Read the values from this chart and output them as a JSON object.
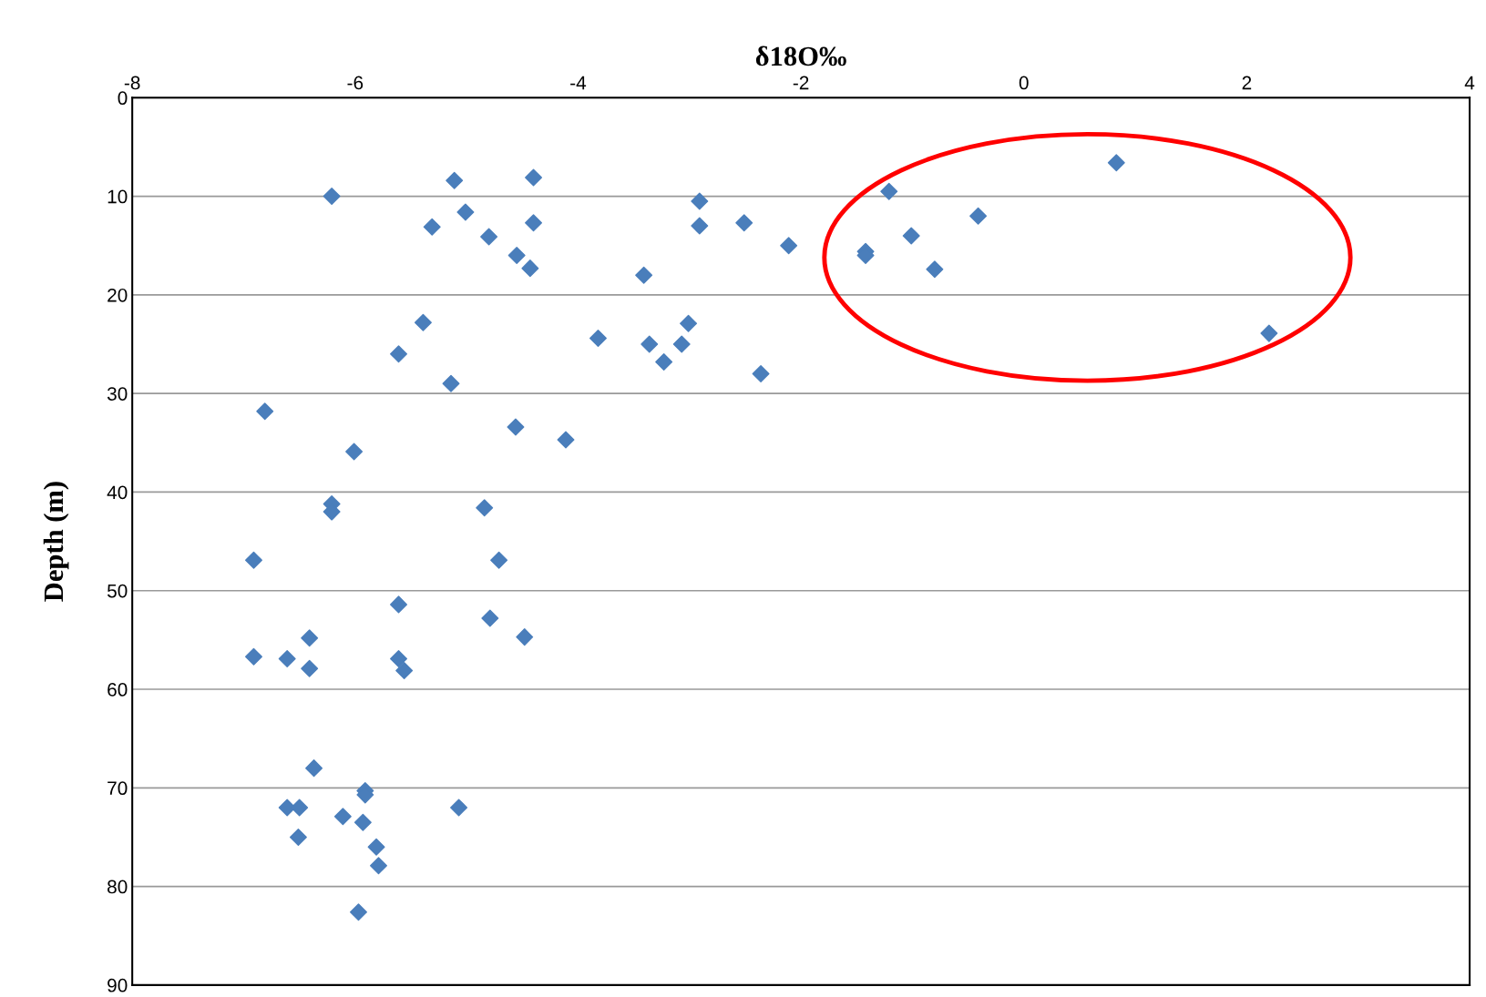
{
  "chart_data": {
    "type": "scatter",
    "xlabel": "δ18O‰",
    "ylabel": "Depth (m)",
    "x": [
      0.83,
      -1.21,
      -0.41,
      -1.01,
      -1.42,
      -1.42,
      -0.8,
      2.2,
      -2.11,
      -2.51,
      -2.91,
      -2.91,
      -3.41,
      -3.01,
      -3.82,
      -3.36,
      -3.07,
      -3.23,
      -2.36,
      -4.4,
      -5.11,
      -6.21,
      -5.01,
      -4.4,
      -5.31,
      -4.8,
      -4.55,
      -4.43,
      -5.39,
      -5.61,
      -5.14,
      -6.81,
      -4.56,
      -4.11,
      -6.01,
      -6.21,
      -6.21,
      -4.84,
      -6.91,
      -4.71,
      -5.61,
      -4.79,
      -6.41,
      -4.48,
      -6.91,
      -6.61,
      -5.61,
      -6.41,
      -5.56,
      -6.37,
      -5.91,
      -5.91,
      -6.61,
      -6.5,
      -5.07,
      -6.11,
      -5.93,
      -6.51,
      -5.81,
      -5.79,
      -5.97
    ],
    "values": [
      6.6,
      9.5,
      12.0,
      14.0,
      15.6,
      16.0,
      17.4,
      23.9,
      15.0,
      12.7,
      10.5,
      13.0,
      18.0,
      22.9,
      24.4,
      25.0,
      25.0,
      26.8,
      28.0,
      8.1,
      8.4,
      10.0,
      11.6,
      12.7,
      13.1,
      14.1,
      16.0,
      17.3,
      22.8,
      26.0,
      29.0,
      31.8,
      33.4,
      34.7,
      35.9,
      41.2,
      42.0,
      41.6,
      46.9,
      46.9,
      51.4,
      52.8,
      54.8,
      54.7,
      56.7,
      56.9,
      56.9,
      57.9,
      58.1,
      68.0,
      70.3,
      70.7,
      72.0,
      72.0,
      72.0,
      72.9,
      73.5,
      75.0,
      76.0,
      77.9,
      82.6
    ],
    "color": "#4a7ebb",
    "marker": "diamond",
    "grid": "y",
    "xlim": [
      -8,
      4
    ],
    "xticks": [
      -8,
      -6,
      -4,
      -2,
      0,
      2,
      4
    ],
    "ylim": [
      90,
      0
    ],
    "yticks": [
      0,
      10,
      20,
      30,
      40,
      50,
      60,
      70,
      80,
      90
    ]
  }
}
